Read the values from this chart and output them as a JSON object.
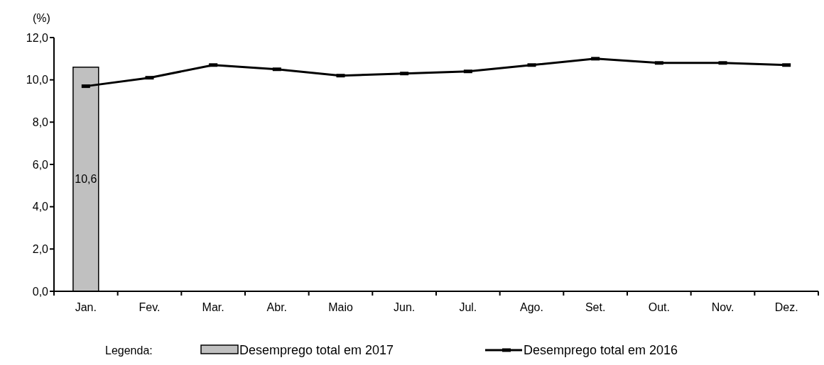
{
  "chart_data": {
    "type": "bar",
    "ylabel": "(%)",
    "legend_title": "Legenda:",
    "legend": "bottom",
    "categories": [
      "Jan.",
      "Fev.",
      "Mar.",
      "Abr.",
      "Maio",
      "Jun.",
      "Jul.",
      "Ago.",
      "Set.",
      "Out.",
      "Nov.",
      "Dez."
    ],
    "series": [
      {
        "name": "Desemprego total em 2017",
        "color": "#c0c0c0",
        "values": [
          10.6,
          null,
          null,
          null,
          null,
          null,
          null,
          null,
          null,
          null,
          null,
          null
        ],
        "value_labels": [
          "10,6",
          null,
          null,
          null,
          null,
          null,
          null,
          null,
          null,
          null,
          null,
          null
        ]
      },
      {
        "name": "Desemprego total em 2016",
        "type": "line",
        "color": "#000000",
        "marker": "square",
        "values": [
          9.7,
          10.1,
          10.7,
          10.5,
          10.2,
          10.3,
          10.4,
          10.7,
          11.0,
          10.8,
          10.8,
          10.7
        ]
      }
    ],
    "ylim": [
      0,
      12
    ],
    "yticks": [
      {
        "value": 0,
        "label": "0,0"
      },
      {
        "value": 2,
        "label": "2,0"
      },
      {
        "value": 4,
        "label": "4,0"
      },
      {
        "value": 6,
        "label": "6,0"
      },
      {
        "value": 8,
        "label": "8,0"
      },
      {
        "value": 10,
        "label": "10,0"
      },
      {
        "value": 12,
        "label": "12,0"
      }
    ]
  }
}
